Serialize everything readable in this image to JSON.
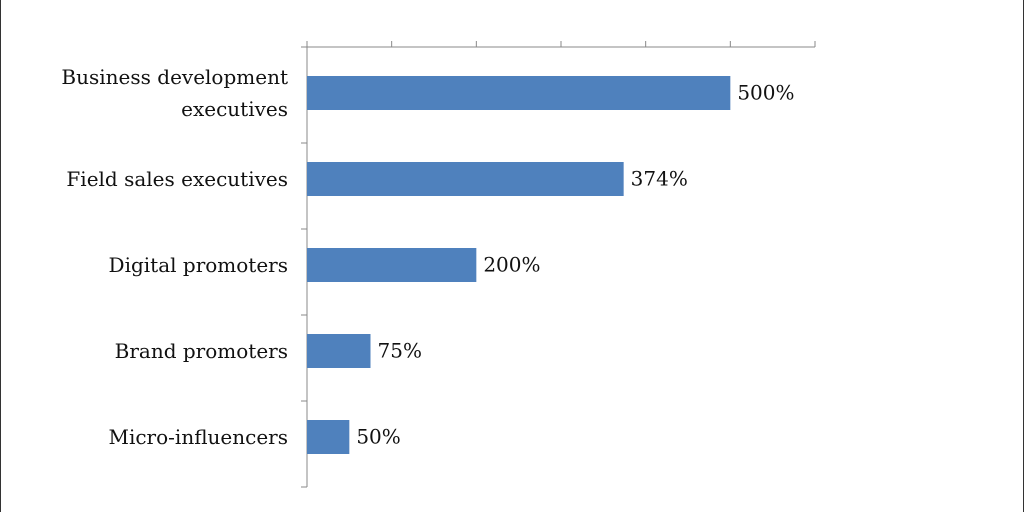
{
  "chart_data": {
    "type": "bar",
    "orientation": "horizontal",
    "categories": [
      "Business development\nexecutives",
      "Field sales executives",
      "Digital promoters",
      "Brand promoters",
      "Micro-influencers"
    ],
    "values": [
      500,
      374,
      200,
      75,
      50
    ],
    "value_labels": [
      "500%",
      "374%",
      "200%",
      "75%",
      "50%"
    ],
    "color": "#4f81bd",
    "xlim": [
      0,
      600
    ],
    "xticks": [
      0,
      100,
      200,
      300,
      400,
      500,
      600
    ]
  }
}
